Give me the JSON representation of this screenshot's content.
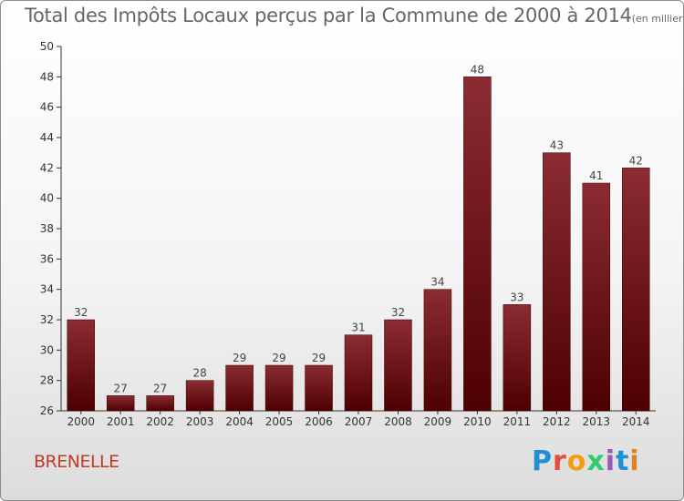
{
  "header": {
    "title": "Total des Impôts Locaux perçus par la Commune de 2000 à 2014",
    "unit": "(en milliers d'€)"
  },
  "footer": {
    "commune": "BRENELLE",
    "logo": [
      "P",
      "r",
      "o",
      "x",
      "i",
      "t",
      "i"
    ]
  },
  "colors": {
    "bar_top": "#8b2c33",
    "bar_bottom": "#4d0000",
    "axis": "#333333",
    "grid_text": "#333333"
  },
  "chart_data": {
    "type": "bar",
    "title": "Total des Impôts Locaux perçus par la Commune de 2000 à 2014",
    "categories": [
      "2000",
      "2001",
      "2002",
      "2003",
      "2004",
      "2005",
      "2006",
      "2007",
      "2008",
      "2009",
      "2010",
      "2011",
      "2012",
      "2013",
      "2014"
    ],
    "values": [
      32,
      27,
      27,
      28,
      29,
      29,
      29,
      31,
      32,
      34,
      48,
      33,
      43,
      41,
      42
    ],
    "ylim": [
      26,
      50
    ],
    "yticks": [
      26,
      28,
      30,
      32,
      34,
      36,
      38,
      40,
      42,
      44,
      46,
      48,
      50
    ],
    "xlabel": "",
    "ylabel": "",
    "grid": false,
    "data_labels": true
  }
}
